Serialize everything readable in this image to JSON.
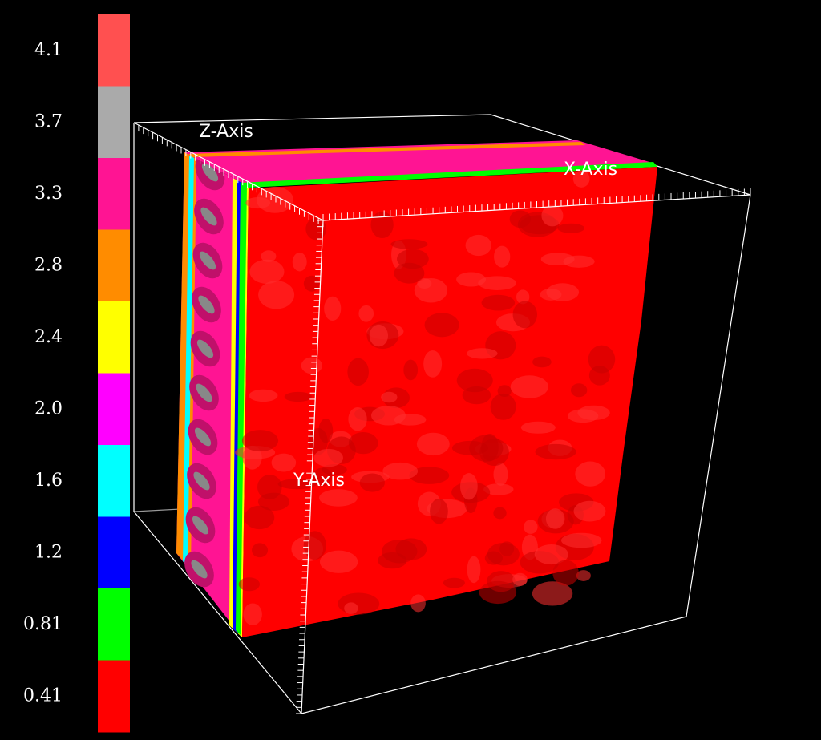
{
  "colorbar": {
    "labels": [
      "4.1",
      "3.7",
      "3.3",
      "2.8",
      "2.4",
      "2.0",
      "1.6",
      "1.2",
      "0.81",
      "0.41"
    ],
    "colors": [
      "#ff5050",
      "#aaaaaa",
      "#ff1493",
      "#ff8c00",
      "#ffff00",
      "#ff00ff",
      "#00ffff",
      "#0000ff",
      "#00ff00",
      "#ff0000"
    ]
  },
  "axes": {
    "z": "Z-Axis",
    "x": "X-Axis",
    "y": "Y-Axis"
  }
}
